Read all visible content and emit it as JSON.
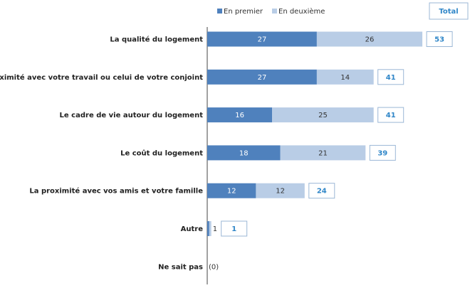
{
  "chart_data": {
    "type": "bar",
    "orientation": "horizontal",
    "stacked": true,
    "categories": [
      "La qualité du logement",
      "La proximité avec votre travail ou celui de votre conjoint",
      "Le cadre de vie autour du logement",
      "Le coût du logement",
      "La proximité avec vos amis et votre famille",
      "Autre",
      "Ne sait pas"
    ],
    "series": [
      {
        "name": "En premier",
        "values": [
          27,
          27,
          16,
          18,
          12,
          0.5,
          0
        ]
      },
      {
        "name": "En deuxième",
        "values": [
          26,
          14,
          25,
          21,
          12,
          0.5,
          0
        ]
      }
    ],
    "segment_labels": {
      "En premier": [
        "27",
        "27",
        "16",
        "18",
        "12",
        "",
        ""
      ],
      "En deuxième": [
        "26",
        "14",
        "25",
        "21",
        "12",
        "1",
        ""
      ]
    },
    "totals": [
      "53",
      "41",
      "41",
      "39",
      "24",
      "1",
      "(0)"
    ],
    "total_header": "Total",
    "legend_position": "top",
    "colors": {
      "En premier": "#4f81bd",
      "En deuxième": "#b9cde6",
      "total_text": "#2f86c8"
    },
    "grid": false
  }
}
